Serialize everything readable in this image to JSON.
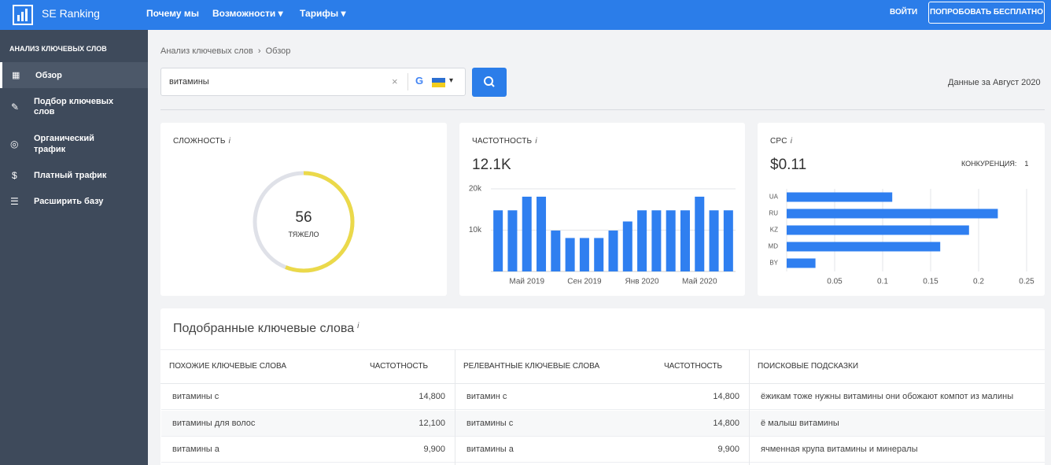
{
  "header": {
    "logo": "SE Ranking",
    "nav": [
      "Почему мы",
      "Возможности",
      "Тарифы"
    ],
    "login": "ВОЙТИ",
    "cta": "ПОПРОБОВАТЬ БЕСПЛАТНО"
  },
  "sidebar": {
    "title": "АНАЛИЗ КЛЮЧЕВЫХ СЛОВ",
    "items": [
      "Обзор",
      "Подбор ключевых слов",
      "Органический трафик",
      "Платный трафик",
      "Расширить базу"
    ]
  },
  "breadcrumb": [
    "Анализ ключевых слов",
    "Обзор"
  ],
  "search": {
    "query": "витамины",
    "data_date": "Данные за Август 2020"
  },
  "difficulty": {
    "label": "СЛОЖНОСТЬ",
    "info": "i",
    "value": 56,
    "level": "ТЯЖЕЛО",
    "scale": [
      0,
      100
    ]
  },
  "volume": {
    "label": "ЧАСТОТНОСТЬ",
    "info": "i",
    "value": "12.1K",
    "chart": {
      "type": "bar",
      "color": "#2f7ff0",
      "categories": [
        null,
        null,
        "Май 2019",
        null,
        null,
        null,
        "Сен 2019",
        null,
        null,
        null,
        "Янв 2020",
        null,
        null,
        null,
        "Май 2020",
        null,
        null
      ],
      "values": [
        14800,
        14800,
        18100,
        18100,
        9900,
        8100,
        8100,
        8100,
        9900,
        12100,
        14800,
        14800,
        14800,
        14800,
        18100,
        14800,
        14800
      ],
      "ylim": [
        0,
        20000
      ],
      "yticks": [
        {
          "value": 10000,
          "label": "10k"
        },
        {
          "value": 20000,
          "label": "20k"
        }
      ],
      "grid": true
    }
  },
  "cpc": {
    "label": "CPC",
    "info": "i",
    "value": "$0.11",
    "competition_label": "КОНКУРЕНЦИЯ:",
    "competition": "1",
    "chart": {
      "type": "hbar",
      "color": "#2f7ff0",
      "categories": [
        "UA",
        "RU",
        "KZ",
        "MD",
        "BY"
      ],
      "values": [
        0.11,
        0.22,
        0.19,
        0.16,
        0.03
      ],
      "xlim": [
        0,
        0.25
      ],
      "xticks": [
        0.05,
        0.1,
        0.15,
        0.2,
        0.25
      ],
      "grid": true
    }
  },
  "keywords": {
    "title": "Подобранные ключевые слова",
    "info": "i",
    "similar": {
      "headers": [
        "ПОХОЖИЕ КЛЮЧЕВЫЕ СЛОВА",
        "ЧАСТОТНОСТЬ"
      ],
      "rows": [
        [
          "витамины с",
          "14,800"
        ],
        [
          "витамины для волос",
          "12,100"
        ],
        [
          "витамины а",
          "9,900"
        ]
      ]
    },
    "relevant": {
      "headers": [
        "РЕЛЕВАНТНЫЕ КЛЮЧЕВЫЕ СЛОВА",
        "ЧАСТОТНОСТЬ"
      ],
      "rows": [
        [
          "витамин с",
          "14,800"
        ],
        [
          "витамины с",
          "14,800"
        ],
        [
          "витамины а",
          "9,900"
        ]
      ]
    },
    "suggestions": {
      "headers": [
        "ПОИСКОВЫЕ ПОДСКАЗКИ"
      ],
      "rows": [
        [
          "ёжикам тоже нужны витамины они обожают компот из малины"
        ],
        [
          "ё малыш витамины"
        ],
        [
          "ячменная крупа витамины и минералы"
        ]
      ]
    }
  }
}
